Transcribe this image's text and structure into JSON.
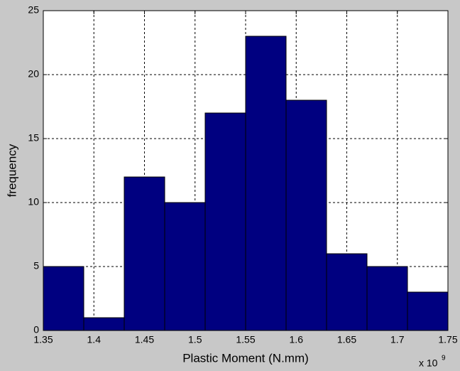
{
  "chart_data": {
    "type": "histogram",
    "xlabel": "Plastic Moment (N.mm)",
    "ylabel": "frequency",
    "x_exponent": {
      "base": "x 10",
      "power": "9"
    },
    "bins": [
      1.35,
      1.39,
      1.43,
      1.47,
      1.51,
      1.55,
      1.59,
      1.63,
      1.67,
      1.71,
      1.75
    ],
    "counts": [
      5,
      1,
      12,
      10,
      17,
      23,
      18,
      6,
      5,
      3
    ],
    "color": "#000080",
    "edge_color": "#000000",
    "xlim": [
      1.35,
      1.75
    ],
    "xticks": [
      1.35,
      1.4,
      1.45,
      1.5,
      1.55,
      1.6,
      1.65,
      1.7,
      1.75
    ],
    "ylim": [
      0,
      25
    ],
    "yticks": [
      0,
      5,
      10,
      15,
      20,
      25
    ],
    "grid": true
  }
}
